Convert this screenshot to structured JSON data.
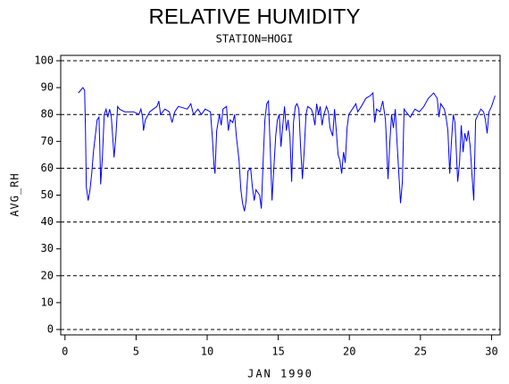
{
  "chart_data": {
    "type": "line",
    "title": "RELATIVE HUMIDITY",
    "subtitle": "STATION=HOGI",
    "x_label": "JAN 1990",
    "y_label": "AVG_RH",
    "x": [
      0.94,
      1.26,
      1.38,
      1.44,
      1.5,
      1.63,
      1.76,
      1.88,
      2.0,
      2.13,
      2.26,
      2.39,
      2.45,
      2.51,
      2.64,
      2.76,
      2.89,
      3.01,
      3.14,
      3.26,
      3.39,
      3.45,
      3.58,
      3.7,
      3.83,
      4.2,
      4.83,
      5.2,
      5.34,
      5.46,
      5.52,
      5.65,
      5.96,
      6.21,
      6.47,
      6.6,
      6.72,
      7.03,
      7.34,
      7.53,
      7.72,
      7.97,
      8.6,
      8.85,
      9.04,
      9.35,
      9.6,
      9.86,
      10.23,
      10.36,
      10.48,
      10.55,
      10.67,
      10.86,
      10.99,
      11.11,
      11.36,
      11.49,
      11.61,
      11.8,
      11.93,
      12.05,
      12.24,
      12.37,
      12.49,
      12.62,
      12.74,
      12.87,
      13.06,
      13.18,
      13.31,
      13.43,
      13.56,
      13.69,
      13.81,
      13.94,
      14.06,
      14.19,
      14.31,
      14.44,
      14.56,
      14.69,
      14.82,
      14.94,
      15.07,
      15.19,
      15.32,
      15.44,
      15.57,
      15.69,
      15.82,
      15.94,
      16.07,
      16.2,
      16.32,
      16.45,
      16.57,
      16.7,
      16.82,
      16.95,
      17.07,
      17.33,
      17.45,
      17.58,
      17.7,
      17.83,
      17.95,
      18.08,
      18.21,
      18.39,
      18.52,
      18.64,
      18.83,
      18.96,
      19.08,
      19.21,
      19.33,
      19.46,
      19.59,
      19.71,
      19.84,
      19.96,
      20.21,
      20.46,
      20.59,
      20.84,
      21.16,
      21.47,
      21.66,
      21.78,
      21.91,
      22.16,
      22.35,
      22.54,
      22.72,
      22.85,
      22.97,
      23.1,
      23.23,
      23.35,
      23.48,
      23.6,
      23.73,
      23.85,
      23.98,
      24.29,
      24.61,
      24.92,
      25.24,
      25.55,
      25.93,
      26.18,
      26.3,
      26.43,
      26.68,
      26.8,
      26.93,
      27.06,
      27.18,
      27.31,
      27.43,
      27.62,
      27.75,
      27.87,
      28.0,
      28.12,
      28.25,
      28.37,
      28.5,
      28.62,
      28.75,
      28.88,
      29.06,
      29.25,
      29.44,
      29.57,
      29.69,
      29.82,
      30.0,
      30.25
    ],
    "series": [
      {
        "color": "#0000ff",
        "values": [
          88,
          90,
          89,
          75,
          53,
          48,
          52,
          58,
          66,
          72,
          78,
          79,
          68,
          54,
          65,
          80,
          82,
          79,
          82,
          79,
          69,
          64,
          72,
          83,
          82,
          81,
          81,
          80,
          82,
          79,
          74,
          78,
          81,
          82,
          83,
          85,
          80,
          82,
          81,
          77,
          81,
          83,
          82,
          84,
          80,
          82,
          80,
          82,
          81,
          72,
          61,
          58,
          74,
          80,
          76,
          82,
          83,
          74,
          78,
          77,
          80,
          72,
          63,
          52,
          47,
          44,
          48,
          59,
          60,
          53,
          48,
          52,
          51,
          50,
          45,
          63,
          78,
          84,
          85,
          67,
          48,
          60,
          72,
          78,
          80,
          68,
          76,
          83,
          74,
          78,
          72,
          55,
          77,
          83,
          84,
          82,
          68,
          56,
          66,
          80,
          83,
          82,
          80,
          76,
          84,
          80,
          83,
          76,
          80,
          83,
          81,
          75,
          72,
          82,
          74,
          65,
          63,
          58,
          66,
          62,
          75,
          80,
          82,
          84,
          81,
          83,
          86,
          87,
          88,
          77,
          82,
          81,
          85,
          78,
          56,
          70,
          80,
          75,
          82,
          70,
          58,
          47,
          55,
          82,
          81,
          79,
          82,
          81,
          83,
          86,
          88,
          86,
          79,
          84,
          82,
          79,
          74,
          58,
          70,
          80,
          77,
          55,
          62,
          76,
          66,
          73,
          70,
          74,
          68,
          58,
          48,
          78,
          80,
          82,
          81,
          78,
          73,
          81,
          83,
          87
        ]
      }
    ],
    "xlim": [
      -0.3,
      30.6
    ],
    "ylim": [
      -2,
      102
    ],
    "xticks": [
      0,
      5,
      10,
      15,
      20,
      25,
      30
    ],
    "yticks": [
      0,
      10,
      20,
      30,
      40,
      50,
      60,
      70,
      80,
      90,
      100
    ],
    "ygrid": [
      0,
      20,
      40,
      60,
      80,
      100
    ]
  }
}
